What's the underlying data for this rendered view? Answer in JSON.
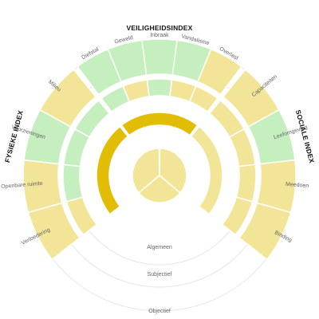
{
  "colors": {
    "green": "#c5efbe",
    "yellow": "#f3e597",
    "gold": "#e2bd06",
    "guide": "#e6e6e6"
  },
  "rings": {
    "general": "Algemeen",
    "subjective": "Subjectief",
    "objective": "Objectief"
  },
  "indices": {
    "physical": "FYSIEKE INDEX",
    "security": "VEILIGHEIDSINDEX",
    "social": "SOCIALE INDEX"
  },
  "segments": [
    {
      "label": "Verloedering",
      "outer": "yellow",
      "middle": "yellow"
    },
    {
      "label": "Openbare ruimte",
      "outer": "yellow",
      "middle": "green"
    },
    {
      "label": "Voorzieningen",
      "outer": "green",
      "middle": "green"
    },
    {
      "label": "Milieu",
      "outer": "yellow",
      "middle": "green"
    },
    {
      "label": "Diefstal",
      "outer": "green",
      "middle": "green"
    },
    {
      "label": "Geweld",
      "outer": "green",
      "middle": "yellow"
    },
    {
      "label": "Inbraak",
      "outer": "green",
      "middle": "green"
    },
    {
      "label": "Vandalisme",
      "outer": "green",
      "middle": "yellow"
    },
    {
      "label": "Overlast",
      "outer": "yellow",
      "middle": "yellow"
    },
    {
      "label": "Capaciteiten",
      "outer": "yellow",
      "middle": "yellow"
    },
    {
      "label": "Leefomgeving",
      "outer": "green",
      "middle": "yellow"
    },
    {
      "label": "Meedoen",
      "outer": "yellow",
      "middle": "yellow"
    },
    {
      "label": "Binding",
      "outer": "yellow",
      "middle": "yellow"
    }
  ],
  "index_ring": [
    {
      "index": "physical",
      "color": "gold"
    },
    {
      "index": "security",
      "color": "gold"
    },
    {
      "index": "social",
      "color": "yellow"
    }
  ],
  "core": [
    {
      "color": "yellow"
    },
    {
      "color": "yellow"
    },
    {
      "color": "yellow"
    }
  ]
}
